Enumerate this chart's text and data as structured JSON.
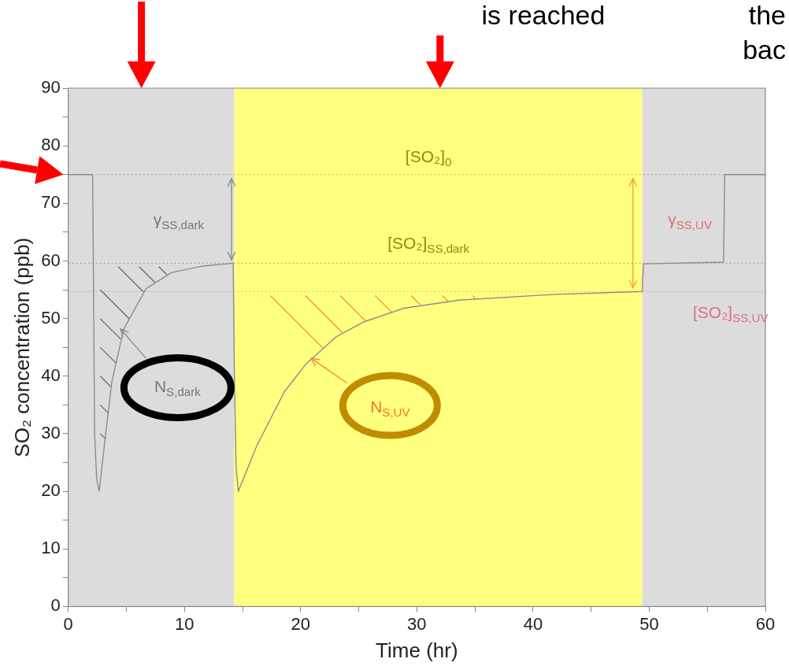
{
  "chart_data": {
    "type": "line",
    "xlabel": "Time (hr)",
    "ylabel": "SO₂ concentration (ppb)",
    "x": [
      0,
      2.1,
      2.27,
      2.45,
      2.66,
      3.2,
      3.75,
      4.78,
      6.7,
      8.9,
      11.5,
      14.2,
      14.3,
      14.45,
      14.64,
      16.2,
      18.6,
      20.5,
      23.1,
      25.4,
      28.9,
      33.6,
      41.9,
      49.4,
      49.5,
      56.4,
      56.5,
      60
    ],
    "series": [
      {
        "color": "#8c8c8c",
        "values": [
          75,
          75,
          30,
          22,
          20,
          29.6,
          39,
          48.2,
          55.2,
          58,
          59.1,
          59.6,
          40,
          24,
          20,
          27.8,
          37.3,
          42.2,
          46.9,
          49.4,
          51.8,
          53.2,
          54.2,
          54.7,
          59.5,
          59.8,
          75,
          75
        ]
      }
    ],
    "xlim": [
      0,
      60
    ],
    "ylim": [
      0,
      90
    ],
    "xticks": [
      0,
      {
        "value": 5,
        "label": null
      },
      10,
      {
        "value": 15,
        "label": null
      },
      20,
      {
        "value": 25,
        "label": null
      },
      30,
      {
        "value": 35,
        "label": null
      },
      40,
      {
        "value": 45,
        "label": null
      },
      50,
      {
        "value": 55,
        "label": null
      },
      60
    ],
    "yticks": [
      0,
      {
        "value": 5,
        "label": null
      },
      10,
      {
        "value": 15,
        "label": null
      },
      20,
      {
        "value": 25,
        "label": null
      },
      30,
      {
        "value": 35,
        "label": null
      },
      40,
      {
        "value": 45,
        "label": null
      },
      50,
      {
        "value": 55,
        "label": null
      },
      60,
      {
        "value": 65,
        "label": null
      },
      70,
      {
        "value": 75,
        "label": null
      },
      80,
      {
        "value": 85,
        "label": null
      },
      90
    ],
    "bands": [
      {
        "axis": "x",
        "from": 0,
        "to": 14.3,
        "color": "#dcdcdc"
      },
      {
        "axis": "x",
        "from": 14.3,
        "to": 49.4,
        "color": "#ffff80"
      },
      {
        "axis": "x",
        "from": 49.4,
        "to": 60,
        "color": "#dcdcdc"
      }
    ],
    "ref_lines": [
      {
        "axis": "y",
        "value": 75,
        "label": "[SO₂]$_{0}$",
        "color": "#8c8c14",
        "line_style": "dotted"
      },
      {
        "axis": "y",
        "value": 59.6,
        "label": "[SO₂]$_{SS,dark}$",
        "color": "#8c8c14",
        "line_style": "dotted"
      },
      {
        "axis": "y",
        "value": 54.7,
        "label": "[SO₂]$_{SS,UV}$",
        "color": "#e07080",
        "line_style": "dotted"
      }
    ],
    "annotations": [
      "γ$_{SS,dark}$",
      "γ$_{SS,UV}$",
      "N$_{S,dark}$",
      "N$_{S,UV}$",
      "is reached",
      "the",
      "bac"
    ],
    "grid": false,
    "legend": false,
    "marker": "none",
    "line_style": "solid"
  }
}
